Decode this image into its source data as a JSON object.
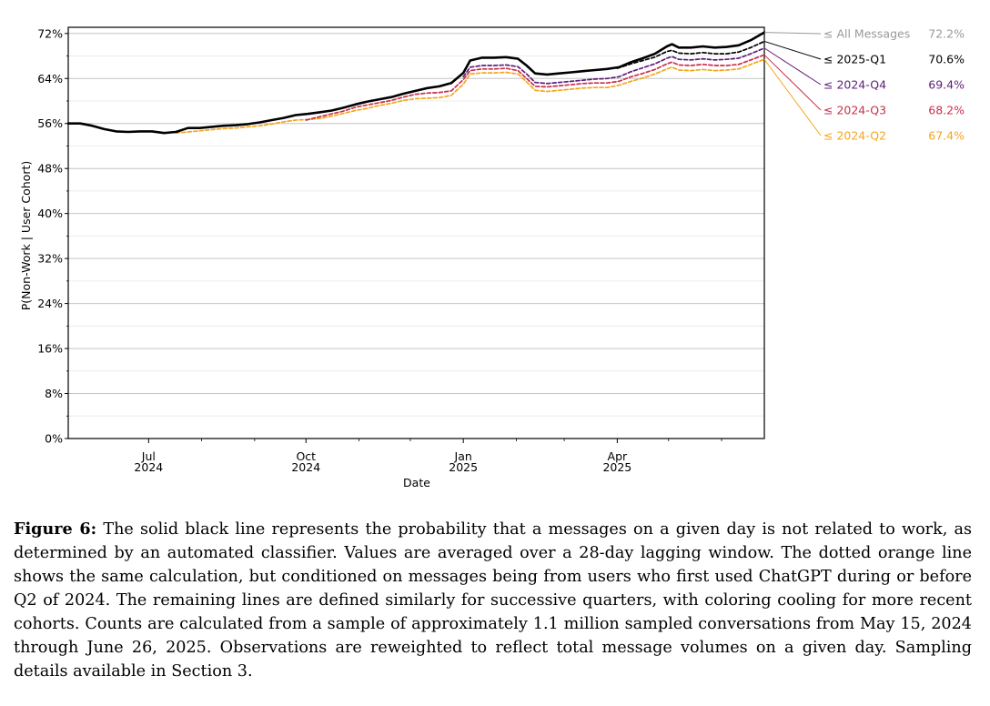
{
  "chart_data": {
    "type": "line",
    "title": "",
    "xlabel": "Date",
    "ylabel": "P(Non-Work | User Cohort)",
    "x_start": "2024-05-15",
    "x_end": "2025-06-26",
    "ylim": [
      0,
      74
    ],
    "y_ticks": [
      {
        "value": 0,
        "label": "0%"
      },
      {
        "value": 8,
        "label": "8%"
      },
      {
        "value": 16,
        "label": "16%"
      },
      {
        "value": 24,
        "label": "24%"
      },
      {
        "value": 32,
        "label": "32%"
      },
      {
        "value": 40,
        "label": "40%"
      },
      {
        "value": 48,
        "label": "48%"
      },
      {
        "value": 56,
        "label": "56%"
      },
      {
        "value": 64,
        "label": "64%"
      },
      {
        "value": 72,
        "label": "72%"
      }
    ],
    "y_minor_ticks": [
      4,
      12,
      20,
      28,
      36,
      44,
      52,
      60,
      68
    ],
    "x_ticks": [
      {
        "date": "2024-07-01",
        "month": "Jul",
        "year": "2024"
      },
      {
        "date": "2024-10-01",
        "month": "Oct",
        "year": "2024"
      },
      {
        "date": "2025-01-01",
        "month": "Jan",
        "year": "2025"
      },
      {
        "date": "2025-04-01",
        "month": "Apr",
        "year": "2025"
      }
    ],
    "x_minor_ticks": [
      "2024-08-01",
      "2024-09-01",
      "2024-11-01",
      "2024-12-01",
      "2025-02-01",
      "2025-03-01",
      "2025-05-01",
      "2025-06-01"
    ],
    "grid": "horizontal",
    "series": [
      {
        "name": "All Messages",
        "legend": "≤ All Messages",
        "final_label": "72.2%",
        "color": "#000000",
        "label_color": "#999999",
        "style": "solid",
        "points": [
          [
            "2024-05-15",
            56.0
          ],
          [
            "2024-05-22",
            56.0
          ],
          [
            "2024-05-29",
            55.6
          ],
          [
            "2024-06-05",
            55.0
          ],
          [
            "2024-06-12",
            54.6
          ],
          [
            "2024-06-19",
            54.5
          ],
          [
            "2024-06-26",
            54.6
          ],
          [
            "2024-07-03",
            54.6
          ],
          [
            "2024-07-10",
            54.3
          ],
          [
            "2024-07-17",
            54.5
          ],
          [
            "2024-07-24",
            55.2
          ],
          [
            "2024-07-31",
            55.2
          ],
          [
            "2024-08-07",
            55.4
          ],
          [
            "2024-08-14",
            55.6
          ],
          [
            "2024-08-21",
            55.7
          ],
          [
            "2024-08-28",
            55.9
          ],
          [
            "2024-09-04",
            56.2
          ],
          [
            "2024-09-11",
            56.6
          ],
          [
            "2024-09-18",
            57.0
          ],
          [
            "2024-09-25",
            57.5
          ],
          [
            "2024-10-02",
            57.7
          ],
          [
            "2024-10-09",
            58.0
          ],
          [
            "2024-10-16",
            58.3
          ],
          [
            "2024-10-23",
            58.8
          ],
          [
            "2024-10-30",
            59.4
          ],
          [
            "2024-11-06",
            59.9
          ],
          [
            "2024-11-13",
            60.3
          ],
          [
            "2024-11-20",
            60.7
          ],
          [
            "2024-11-27",
            61.3
          ],
          [
            "2024-12-04",
            61.8
          ],
          [
            "2024-12-11",
            62.3
          ],
          [
            "2024-12-18",
            62.6
          ],
          [
            "2024-12-25",
            63.2
          ],
          [
            "2025-01-01",
            65.0
          ],
          [
            "2025-01-05",
            67.2
          ],
          [
            "2025-01-12",
            67.7
          ],
          [
            "2025-01-19",
            67.7
          ],
          [
            "2025-01-26",
            67.8
          ],
          [
            "2025-02-02",
            67.5
          ],
          [
            "2025-02-07",
            66.3
          ],
          [
            "2025-02-12",
            64.9
          ],
          [
            "2025-02-19",
            64.7
          ],
          [
            "2025-02-26",
            64.9
          ],
          [
            "2025-03-05",
            65.1
          ],
          [
            "2025-03-12",
            65.3
          ],
          [
            "2025-03-19",
            65.5
          ],
          [
            "2025-03-26",
            65.7
          ],
          [
            "2025-04-02",
            66.0
          ],
          [
            "2025-04-09",
            66.9
          ],
          [
            "2025-04-16",
            67.6
          ],
          [
            "2025-04-23",
            68.4
          ],
          [
            "2025-04-30",
            69.7
          ],
          [
            "2025-05-03",
            70.1
          ],
          [
            "2025-05-07",
            69.5
          ],
          [
            "2025-05-14",
            69.5
          ],
          [
            "2025-05-21",
            69.7
          ],
          [
            "2025-05-28",
            69.5
          ],
          [
            "2025-06-04",
            69.6
          ],
          [
            "2025-06-11",
            69.9
          ],
          [
            "2025-06-18",
            70.8
          ],
          [
            "2025-06-26",
            72.2
          ]
        ]
      },
      {
        "name": "2025-Q1",
        "legend": "≤ 2025-Q1",
        "final_label": "70.6%",
        "color": "#000000",
        "label_color": "#000000",
        "style": "dashed",
        "points": [
          [
            "2025-04-01",
            65.8
          ],
          [
            "2025-04-09",
            66.6
          ],
          [
            "2025-04-16",
            67.2
          ],
          [
            "2025-04-23",
            67.8
          ],
          [
            "2025-04-30",
            68.8
          ],
          [
            "2025-05-03",
            69.0
          ],
          [
            "2025-05-07",
            68.5
          ],
          [
            "2025-05-14",
            68.4
          ],
          [
            "2025-05-21",
            68.6
          ],
          [
            "2025-05-28",
            68.4
          ],
          [
            "2025-06-04",
            68.4
          ],
          [
            "2025-06-11",
            68.7
          ],
          [
            "2025-06-18",
            69.5
          ],
          [
            "2025-06-26",
            70.6
          ]
        ]
      },
      {
        "name": "2024-Q4",
        "legend": "≤ 2024-Q4",
        "final_label": "69.4%",
        "color": "#5e1e78",
        "label_color": "#5e1e78",
        "style": "dashed",
        "points": [
          [
            "2025-01-01",
            64.3
          ],
          [
            "2025-01-05",
            66.0
          ],
          [
            "2025-01-12",
            66.3
          ],
          [
            "2025-01-19",
            66.3
          ],
          [
            "2025-01-26",
            66.4
          ],
          [
            "2025-02-02",
            66.1
          ],
          [
            "2025-02-07",
            64.8
          ],
          [
            "2025-02-12",
            63.3
          ],
          [
            "2025-02-19",
            63.1
          ],
          [
            "2025-02-26",
            63.3
          ],
          [
            "2025-03-05",
            63.5
          ],
          [
            "2025-03-12",
            63.7
          ],
          [
            "2025-03-19",
            63.9
          ],
          [
            "2025-03-26",
            64.0
          ],
          [
            "2025-04-02",
            64.3
          ],
          [
            "2025-04-09",
            65.2
          ],
          [
            "2025-04-16",
            65.9
          ],
          [
            "2025-04-23",
            66.6
          ],
          [
            "2025-04-30",
            67.6
          ],
          [
            "2025-05-03",
            67.9
          ],
          [
            "2025-05-07",
            67.4
          ],
          [
            "2025-05-14",
            67.3
          ],
          [
            "2025-05-21",
            67.5
          ],
          [
            "2025-05-28",
            67.3
          ],
          [
            "2025-06-04",
            67.4
          ],
          [
            "2025-06-11",
            67.6
          ],
          [
            "2025-06-18",
            68.4
          ],
          [
            "2025-06-26",
            69.4
          ]
        ]
      },
      {
        "name": "2024-Q3",
        "legend": "≤ 2024-Q3",
        "final_label": "68.2%",
        "color": "#c8304b",
        "label_color": "#c8304b",
        "style": "dashed",
        "points": [
          [
            "2024-10-01",
            56.6
          ],
          [
            "2024-10-09",
            57.2
          ],
          [
            "2024-10-16",
            57.7
          ],
          [
            "2024-10-23",
            58.2
          ],
          [
            "2024-10-30",
            58.9
          ],
          [
            "2024-11-06",
            59.3
          ],
          [
            "2024-11-13",
            59.7
          ],
          [
            "2024-11-20",
            60.1
          ],
          [
            "2024-11-27",
            60.7
          ],
          [
            "2024-12-04",
            61.2
          ],
          [
            "2024-12-11",
            61.4
          ],
          [
            "2024-12-18",
            61.5
          ],
          [
            "2024-12-25",
            61.8
          ],
          [
            "2025-01-01",
            63.8
          ],
          [
            "2025-01-05",
            65.4
          ],
          [
            "2025-01-12",
            65.7
          ],
          [
            "2025-01-19",
            65.7
          ],
          [
            "2025-01-26",
            65.8
          ],
          [
            "2025-02-02",
            65.4
          ],
          [
            "2025-02-07",
            64.0
          ],
          [
            "2025-02-12",
            62.6
          ],
          [
            "2025-02-19",
            62.5
          ],
          [
            "2025-02-26",
            62.7
          ],
          [
            "2025-03-05",
            62.9
          ],
          [
            "2025-03-12",
            63.1
          ],
          [
            "2025-03-19",
            63.2
          ],
          [
            "2025-03-26",
            63.2
          ],
          [
            "2025-04-02",
            63.5
          ],
          [
            "2025-04-09",
            64.3
          ],
          [
            "2025-04-16",
            64.9
          ],
          [
            "2025-04-23",
            65.6
          ],
          [
            "2025-04-30",
            66.6
          ],
          [
            "2025-05-03",
            66.9
          ],
          [
            "2025-05-07",
            66.4
          ],
          [
            "2025-05-14",
            66.3
          ],
          [
            "2025-05-21",
            66.5
          ],
          [
            "2025-05-28",
            66.3
          ],
          [
            "2025-06-04",
            66.3
          ],
          [
            "2025-06-11",
            66.5
          ],
          [
            "2025-06-18",
            67.3
          ],
          [
            "2025-06-26",
            68.2
          ]
        ]
      },
      {
        "name": "2024-Q2",
        "legend": "≤ 2024-Q2",
        "final_label": "67.4%",
        "color": "#f5a51c",
        "label_color": "#f5a51c",
        "style": "dashed",
        "points": [
          [
            "2024-07-17",
            54.3
          ],
          [
            "2024-07-24",
            54.5
          ],
          [
            "2024-07-31",
            54.7
          ],
          [
            "2024-08-07",
            54.9
          ],
          [
            "2024-08-14",
            55.1
          ],
          [
            "2024-08-21",
            55.2
          ],
          [
            "2024-08-28",
            55.4
          ],
          [
            "2024-09-04",
            55.6
          ],
          [
            "2024-09-11",
            55.9
          ],
          [
            "2024-09-18",
            56.3
          ],
          [
            "2024-09-25",
            56.6
          ],
          [
            "2024-10-02",
            56.7
          ],
          [
            "2024-10-09",
            56.9
          ],
          [
            "2024-10-16",
            57.3
          ],
          [
            "2024-10-23",
            57.8
          ],
          [
            "2024-10-30",
            58.3
          ],
          [
            "2024-11-06",
            58.7
          ],
          [
            "2024-11-13",
            59.2
          ],
          [
            "2024-11-20",
            59.6
          ],
          [
            "2024-11-27",
            60.1
          ],
          [
            "2024-12-04",
            60.4
          ],
          [
            "2024-12-11",
            60.5
          ],
          [
            "2024-12-18",
            60.6
          ],
          [
            "2024-12-25",
            61.0
          ],
          [
            "2025-01-01",
            63.0
          ],
          [
            "2025-01-05",
            64.8
          ],
          [
            "2025-01-12",
            65.0
          ],
          [
            "2025-01-19",
            65.0
          ],
          [
            "2025-01-26",
            65.1
          ],
          [
            "2025-02-02",
            64.8
          ],
          [
            "2025-02-07",
            63.4
          ],
          [
            "2025-02-12",
            61.9
          ],
          [
            "2025-02-19",
            61.7
          ],
          [
            "2025-02-26",
            61.9
          ],
          [
            "2025-03-05",
            62.1
          ],
          [
            "2025-03-12",
            62.3
          ],
          [
            "2025-03-19",
            62.4
          ],
          [
            "2025-03-26",
            62.4
          ],
          [
            "2025-04-02",
            62.8
          ],
          [
            "2025-04-09",
            63.5
          ],
          [
            "2025-04-16",
            64.1
          ],
          [
            "2025-04-23",
            64.8
          ],
          [
            "2025-04-30",
            65.7
          ],
          [
            "2025-05-03",
            66.0
          ],
          [
            "2025-05-07",
            65.5
          ],
          [
            "2025-05-14",
            65.4
          ],
          [
            "2025-05-21",
            65.6
          ],
          [
            "2025-05-28",
            65.4
          ],
          [
            "2025-06-04",
            65.5
          ],
          [
            "2025-06-11",
            65.7
          ],
          [
            "2025-06-18",
            66.5
          ],
          [
            "2025-06-26",
            67.4
          ]
        ]
      }
    ]
  },
  "caption": {
    "label": "Figure 6:",
    "text": "The solid black line represents the probability that a messages on a given day is not related to work, as determined by an automated classifier. Values are averaged over a 28-day lagging window. The dotted orange line shows the same calculation, but conditioned on messages being from users who first used ChatGPT during or before Q2 of 2024. The remaining lines are defined similarly for successive quarters, with coloring cooling for more recent cohorts. Counts are calculated from a sample of approximately 1.1 million sampled conversations from May 15, 2024 through June 26, 2025. Observations are reweighted to reflect total message volumes on a given day. Sampling details available in Section 3."
  }
}
